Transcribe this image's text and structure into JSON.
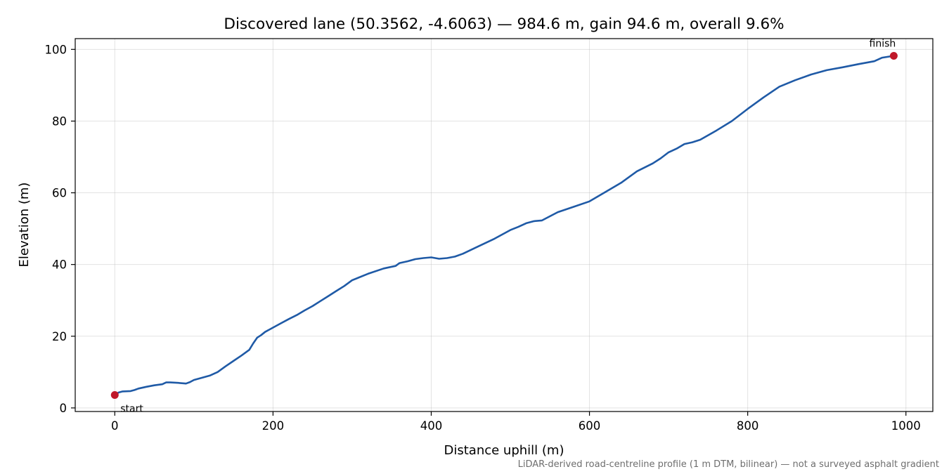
{
  "chart_data": {
    "type": "line",
    "title": "Discovered lane (50.3562, -4.6063) — 984.6 m, gain 94.6 m, overall 9.6%",
    "xlabel": "Distance uphill (m)",
    "ylabel": "Elevation (m)",
    "xlim": [
      -50,
      1034
    ],
    "ylim": [
      -1,
      103
    ],
    "xticks": [
      0,
      200,
      400,
      600,
      800,
      1000
    ],
    "yticks": [
      0,
      20,
      40,
      60,
      80,
      100
    ],
    "grid": true,
    "line_color": "#1f5aa6",
    "marker_color": "#c0182a",
    "series": [
      {
        "x": [
          0,
          5,
          10,
          20,
          25,
          30,
          40,
          50,
          60,
          65,
          70,
          80,
          90,
          95,
          100,
          110,
          120,
          130,
          140,
          150,
          160,
          170,
          175,
          180,
          185,
          190,
          200,
          210,
          220,
          230,
          240,
          250,
          260,
          270,
          280,
          290,
          300,
          320,
          340,
          355,
          360,
          370,
          380,
          390,
          400,
          410,
          420,
          430,
          440,
          460,
          480,
          500,
          510,
          520,
          530,
          540,
          560,
          580,
          600,
          620,
          640,
          660,
          680,
          690,
          700,
          710,
          720,
          730,
          740,
          760,
          780,
          800,
          820,
          840,
          860,
          880,
          900,
          920,
          940,
          960,
          970,
          984.6
        ],
        "y": [
          3.6,
          4.3,
          4.6,
          4.7,
          5.0,
          5.4,
          5.9,
          6.3,
          6.6,
          7.1,
          7.1,
          7.0,
          6.8,
          7.2,
          7.8,
          8.4,
          9.0,
          10.0,
          11.6,
          13.1,
          14.6,
          16.2,
          18.0,
          19.6,
          20.3,
          21.2,
          22.4,
          23.6,
          24.8,
          25.9,
          27.2,
          28.4,
          29.8,
          31.2,
          32.6,
          34.0,
          35.6,
          37.4,
          38.9,
          39.6,
          40.4,
          40.9,
          41.5,
          41.8,
          42.0,
          41.6,
          41.8,
          42.2,
          43.0,
          45.1,
          47.2,
          49.6,
          50.5,
          51.5,
          52.1,
          52.3,
          54.6,
          56.1,
          57.6,
          60.2,
          62.8,
          66.0,
          68.2,
          69.6,
          71.3,
          72.3,
          73.6,
          74.1,
          74.8,
          77.3,
          80.0,
          83.4,
          86.6,
          89.6,
          91.4,
          93.0,
          94.2,
          95.0,
          95.9,
          96.7,
          97.7,
          98.2
        ]
      }
    ],
    "annotations": [
      {
        "text": "start",
        "x": 0,
        "y": 3.6
      },
      {
        "text": "finish",
        "x": 984.6,
        "y": 98.2
      }
    ],
    "footnote": "LiDAR-derived road-centreline profile (1 m DTM, bilinear) — not a surveyed asphalt gradient"
  }
}
